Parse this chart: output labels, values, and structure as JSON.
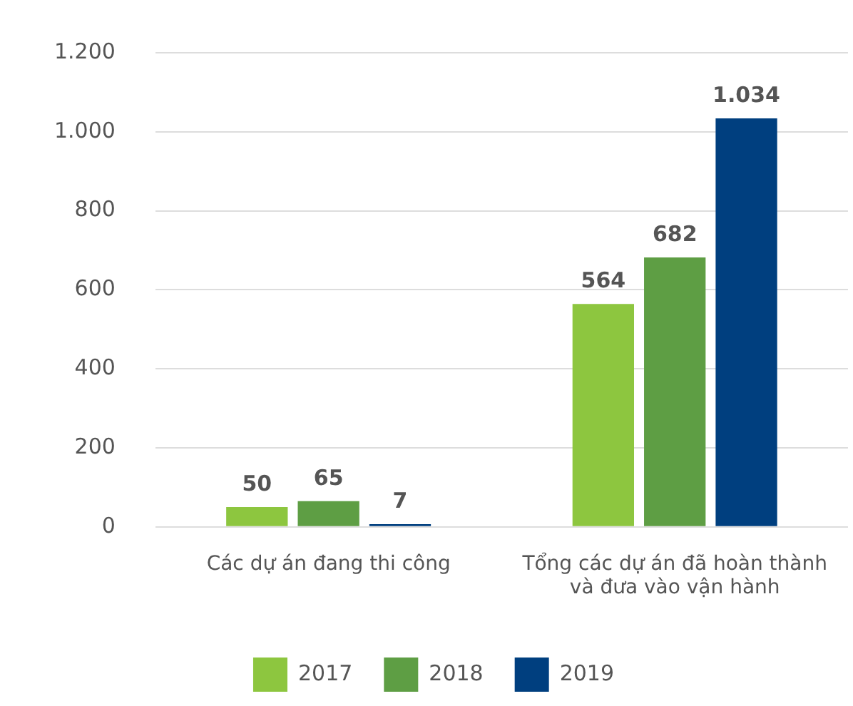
{
  "chart_data": {
    "type": "bar",
    "categories": [
      "Các dự án đang thi công",
      "Tổng các dự án đã hoàn thành và đưa vào vận hành"
    ],
    "series": [
      {
        "name": "2017",
        "color": "#8dc63f",
        "values": [
          50,
          564
        ],
        "value_labels": [
          "50",
          "564"
        ]
      },
      {
        "name": "2018",
        "color": "#5e9e44",
        "values": [
          65,
          682
        ],
        "value_labels": [
          "65",
          "682"
        ]
      },
      {
        "name": "2019",
        "color": "#003f7f",
        "values": [
          7,
          1034
        ],
        "value_labels": [
          "7",
          "1.034"
        ]
      }
    ],
    "ylim": [
      0,
      1200
    ],
    "yticks": [
      0,
      {
        "value": 200,
        "label": "200"
      },
      {
        "value": 400,
        "label": "400"
      },
      {
        "value": 600,
        "label": "600"
      },
      {
        "value": 800,
        "label": "800"
      },
      {
        "value": 1000,
        "label": "1.000"
      },
      {
        "value": 1200,
        "label": "1.200"
      }
    ],
    "grid": "y",
    "legend": "bottom"
  }
}
